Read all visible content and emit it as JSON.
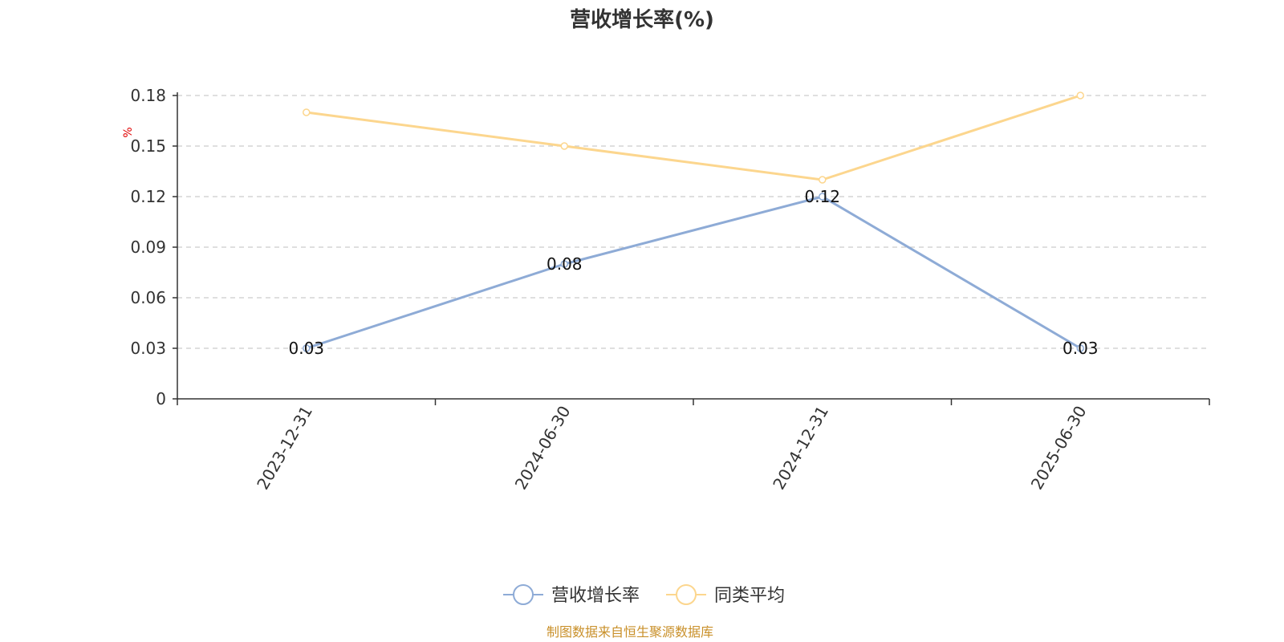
{
  "chart_data": {
    "type": "line",
    "title": "营收增长率(%)",
    "ylabel": "%",
    "categories": [
      "2023-12-31",
      "2024-06-30",
      "2024-12-31",
      "2025-06-30"
    ],
    "ylim": [
      0,
      0.18
    ],
    "yticks": [
      "0",
      "0.03",
      "0.06",
      "0.09",
      "0.12",
      "0.15",
      "0.18"
    ],
    "grid": true,
    "legend_position": "bottom",
    "series": [
      {
        "name": "营收增长率",
        "values": [
          0.03,
          0.08,
          0.12,
          0.03
        ],
        "data_labels": [
          "0.03",
          "0.08",
          "0.12",
          "0.03"
        ],
        "color": "#8eabd6"
      },
      {
        "name": "同类平均",
        "values": [
          0.17,
          0.15,
          0.13,
          0.18
        ],
        "color": "#fcd68e"
      }
    ]
  },
  "source_note": "制图数据来自恒生聚源数据库"
}
